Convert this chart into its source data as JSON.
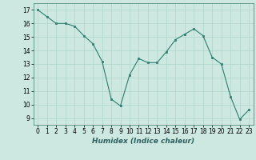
{
  "x": [
    0,
    1,
    2,
    3,
    4,
    5,
    6,
    7,
    8,
    9,
    10,
    11,
    12,
    13,
    14,
    15,
    16,
    17,
    18,
    19,
    20,
    21,
    22,
    23
  ],
  "y": [
    17.0,
    16.5,
    16.0,
    16.0,
    15.8,
    15.1,
    14.5,
    13.2,
    10.4,
    9.9,
    12.2,
    13.4,
    13.1,
    13.1,
    13.9,
    14.8,
    15.2,
    15.6,
    15.1,
    13.5,
    13.0,
    10.6,
    8.9,
    9.6
  ],
  "line_color": "#2e7d6e",
  "marker_color": "#2e7d6e",
  "bg_color": "#cce8e0",
  "grid_color": "#b0d4cc",
  "xlabel": "Humidex (Indice chaleur)",
  "xlim": [
    -0.5,
    23.5
  ],
  "ylim": [
    8.5,
    17.5
  ],
  "yticks": [
    9,
    10,
    11,
    12,
    13,
    14,
    15,
    16,
    17
  ],
  "xticks": [
    0,
    1,
    2,
    3,
    4,
    5,
    6,
    7,
    8,
    9,
    10,
    11,
    12,
    13,
    14,
    15,
    16,
    17,
    18,
    19,
    20,
    21,
    22,
    23
  ],
  "label_fontsize": 6.5,
  "tick_fontsize": 5.5
}
